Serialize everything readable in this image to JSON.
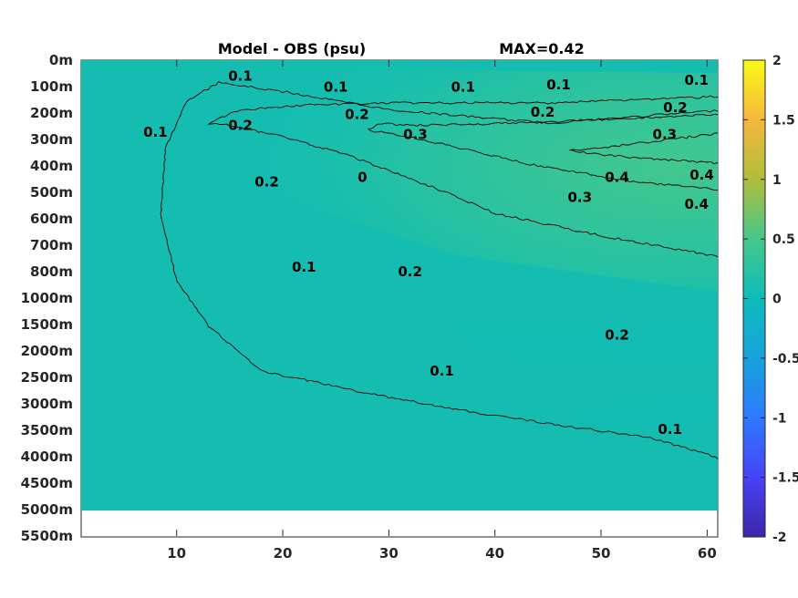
{
  "chart_data": {
    "type": "heatmap",
    "title": "Model - OBS (psu)",
    "subtitle": "MAX=0.42",
    "xlabel": "",
    "ylabel": "",
    "xlim": [
      1,
      61
    ],
    "x_ticks": [
      10,
      20,
      30,
      40,
      50,
      60
    ],
    "y_tick_labels": [
      "0m",
      "100m",
      "200m",
      "300m",
      "400m",
      "500m",
      "600m",
      "700m",
      "800m",
      "1000m",
      "1500m",
      "2000m",
      "2500m",
      "3000m",
      "3500m",
      "4000m",
      "4500m",
      "5000m",
      "5500m"
    ],
    "data_bottom_label": "5000m",
    "colorbar": {
      "range": [
        -2,
        2
      ],
      "ticks": [
        2,
        1.5,
        1,
        0.5,
        0,
        -0.5,
        -1,
        -1.5,
        -2
      ],
      "tick_labels": [
        "2",
        "1.5",
        "1",
        "0.5",
        "0",
        "-0.5",
        "-1",
        "-1.5",
        "-2"
      ],
      "colormap": "parula"
    },
    "background_value": 0.0,
    "contours": [
      {
        "level": 0.1,
        "label": "0.1",
        "points": [
          [
            62,
            90
          ],
          [
            55,
            85
          ],
          [
            40,
            80
          ],
          [
            28,
            75
          ],
          [
            18,
            70
          ],
          [
            13,
            60
          ],
          [
            10,
            50
          ],
          [
            8.5,
            35
          ],
          [
            9,
            20
          ],
          [
            11,
            10
          ],
          [
            14,
            6
          ],
          [
            20,
            8
          ],
          [
            30,
            12
          ],
          [
            45,
            15
          ],
          [
            62,
            12
          ]
        ]
      },
      {
        "level": 0.2,
        "label": "0.2",
        "points": [
          [
            62,
            45
          ],
          [
            50,
            40
          ],
          [
            40,
            35
          ],
          [
            35,
            30
          ],
          [
            26,
            22
          ],
          [
            20,
            18
          ],
          [
            15,
            15.5
          ],
          [
            13,
            15
          ],
          [
            16,
            12
          ],
          [
            22,
            11
          ],
          [
            30,
            10.5
          ],
          [
            45,
            10.5
          ],
          [
            62,
            9
          ]
        ]
      },
      {
        "level": 0.3,
        "label": "0.3",
        "points": [
          [
            62,
            30
          ],
          [
            53,
            28
          ],
          [
            43,
            24
          ],
          [
            32,
            18
          ],
          [
            28,
            16.5
          ],
          [
            29,
            15
          ],
          [
            32,
            15.5
          ],
          [
            42,
            15
          ],
          [
            62,
            13
          ]
        ]
      },
      {
        "level": 0.4,
        "label": "0.4",
        "points": [
          [
            62,
            24
          ],
          [
            55,
            23
          ],
          [
            50,
            22
          ],
          [
            47,
            21
          ],
          [
            50,
            20.5
          ],
          [
            55,
            19
          ],
          [
            62,
            17
          ]
        ]
      }
    ],
    "contour_labels": [
      {
        "text": "0.1",
        "x": 16,
        "y": 4.5
      },
      {
        "text": "0.1",
        "x": 25,
        "y": 7
      },
      {
        "text": "0.1",
        "x": 37,
        "y": 7
      },
      {
        "text": "0.1",
        "x": 46,
        "y": 6.5
      },
      {
        "text": "0.1",
        "x": 59,
        "y": 5.5
      },
      {
        "text": "0.1",
        "x": 8,
        "y": 17
      },
      {
        "text": "0.1",
        "x": 22,
        "y": 47
      },
      {
        "text": "0.1",
        "x": 35,
        "y": 70
      },
      {
        "text": "0.1",
        "x": 56.5,
        "y": 83
      },
      {
        "text": "0.2",
        "x": 16,
        "y": 15.5
      },
      {
        "text": "0.2",
        "x": 27,
        "y": 13
      },
      {
        "text": "0.2",
        "x": 44.5,
        "y": 12.5
      },
      {
        "text": "0.2",
        "x": 57,
        "y": 11.5
      },
      {
        "text": "0.2",
        "x": 18.5,
        "y": 28
      },
      {
        "text": "0.2",
        "x": 32,
        "y": 48
      },
      {
        "text": "0.2",
        "x": 51.5,
        "y": 62
      },
      {
        "text": "0.3",
        "x": 32.5,
        "y": 17.5
      },
      {
        "text": "0.3",
        "x": 48,
        "y": 31.5
      },
      {
        "text": "0.3",
        "x": 56,
        "y": 17.5
      },
      {
        "text": "0.4",
        "x": 51.5,
        "y": 27
      },
      {
        "text": "0.4",
        "x": 59.5,
        "y": 26.5
      },
      {
        "text": "0.4",
        "x": 59,
        "y": 33
      },
      {
        "text": "0",
        "x": 27.5,
        "y": 27
      }
    ]
  }
}
